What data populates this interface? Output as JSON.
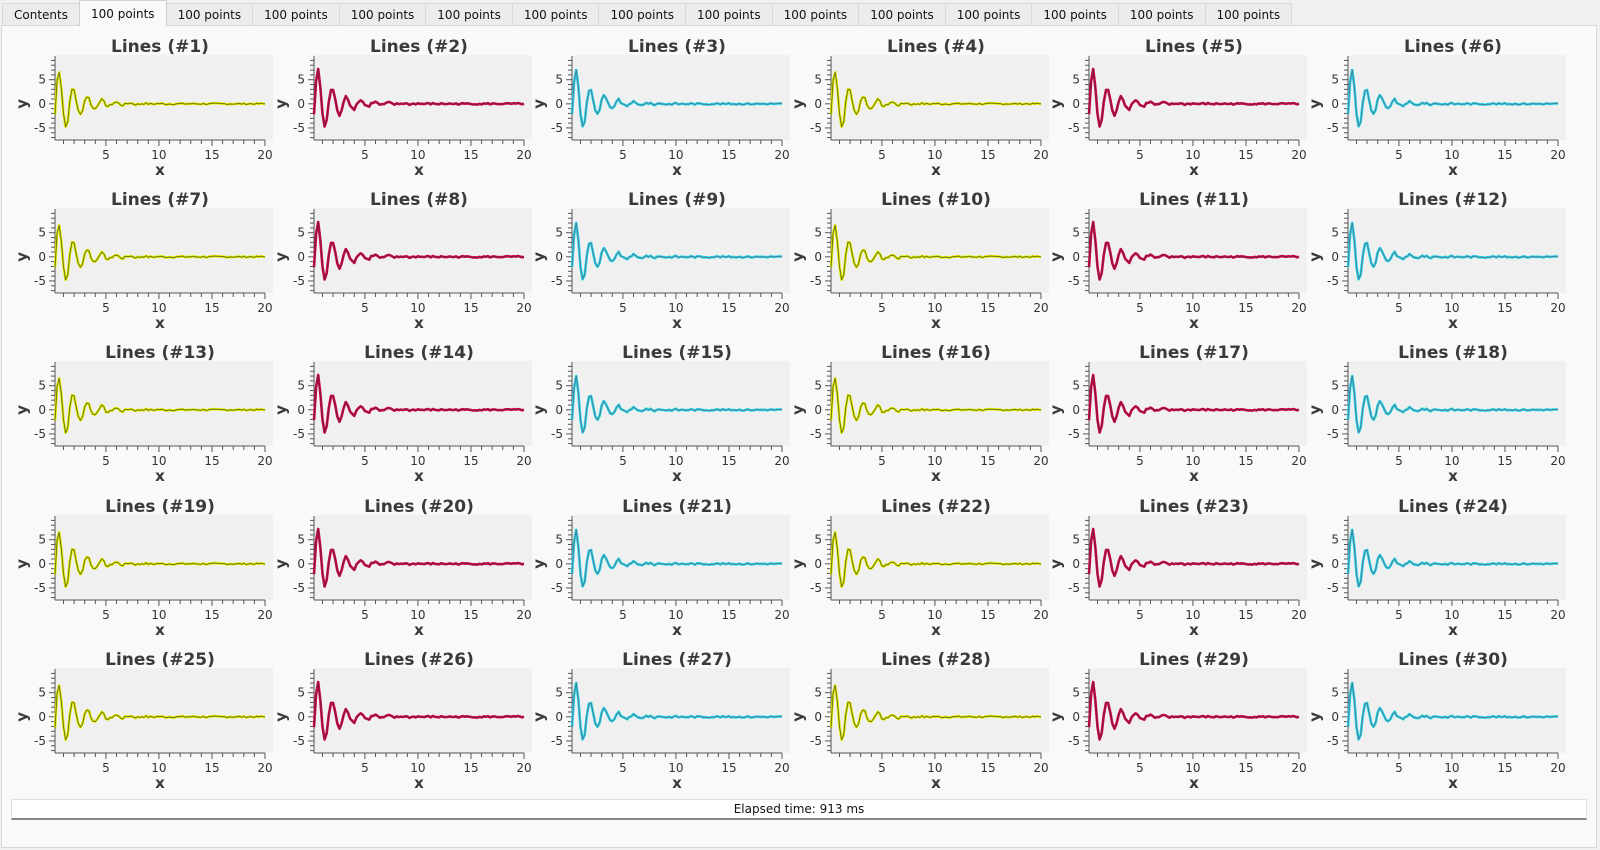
{
  "tabs": [
    {
      "label": "Contents",
      "active": false
    },
    {
      "label": "100 points",
      "active": true
    },
    {
      "label": "100 points",
      "active": false
    },
    {
      "label": "100 points",
      "active": false
    },
    {
      "label": "100 points",
      "active": false
    },
    {
      "label": "100 points",
      "active": false
    },
    {
      "label": "100 points",
      "active": false
    },
    {
      "label": "100 points",
      "active": false
    },
    {
      "label": "100 points",
      "active": false
    },
    {
      "label": "100 points",
      "active": false
    },
    {
      "label": "100 points",
      "active": false
    },
    {
      "label": "100 points",
      "active": false
    },
    {
      "label": "100 points",
      "active": false
    },
    {
      "label": "100 points",
      "active": false
    },
    {
      "label": "100 points",
      "active": false
    }
  ],
  "status": {
    "text": "Elapsed time: 913 ms"
  },
  "chart_style": {
    "palette": [
      {
        "name": "yellow",
        "main": "#e6f000",
        "shade": "#9aa800",
        "dark": "#5a5a20"
      },
      {
        "name": "crimson",
        "main": "#d4003a",
        "shade": "#a0144a",
        "dark": "#6a2050"
      },
      {
        "name": "cyan",
        "main": "#1ed8f0",
        "shade": "#48a8b8",
        "dark": "#4a6a80"
      }
    ],
    "plot_bg": "#f0f0f0"
  },
  "chart_data": {
    "type": "line",
    "description": "30 small multiples, each a damped oscillation sampled at 100 points; color cycles yellow, crimson, cyan",
    "points_per_chart": 100,
    "xlabel": "x",
    "ylabel": "y",
    "xlim": [
      0.2,
      20
    ],
    "ylim": [
      -7.5,
      9.5
    ],
    "xticks": [
      "5",
      "10",
      "15",
      "20"
    ],
    "yticks": [
      "5",
      "0",
      "-5"
    ],
    "grid": false,
    "model": {
      "formula": "y = A * exp(-k*x) * sin(w*x) + small residual ripple",
      "A": 9,
      "k": 0.55,
      "w": 11
    },
    "charts": [
      {
        "title": "Lines (#1)",
        "color": 0
      },
      {
        "title": "Lines (#2)",
        "color": 1
      },
      {
        "title": "Lines (#3)",
        "color": 2
      },
      {
        "title": "Lines (#4)",
        "color": 0
      },
      {
        "title": "Lines (#5)",
        "color": 1
      },
      {
        "title": "Lines (#6)",
        "color": 2
      },
      {
        "title": "Lines (#7)",
        "color": 0
      },
      {
        "title": "Lines (#8)",
        "color": 1
      },
      {
        "title": "Lines (#9)",
        "color": 2
      },
      {
        "title": "Lines (#10)",
        "color": 0
      },
      {
        "title": "Lines (#11)",
        "color": 1
      },
      {
        "title": "Lines (#12)",
        "color": 2
      },
      {
        "title": "Lines (#13)",
        "color": 0
      },
      {
        "title": "Lines (#14)",
        "color": 1
      },
      {
        "title": "Lines (#15)",
        "color": 2
      },
      {
        "title": "Lines (#16)",
        "color": 0
      },
      {
        "title": "Lines (#17)",
        "color": 1
      },
      {
        "title": "Lines (#18)",
        "color": 2
      },
      {
        "title": "Lines (#19)",
        "color": 0
      },
      {
        "title": "Lines (#20)",
        "color": 1
      },
      {
        "title": "Lines (#21)",
        "color": 2
      },
      {
        "title": "Lines (#22)",
        "color": 0
      },
      {
        "title": "Lines (#23)",
        "color": 1
      },
      {
        "title": "Lines (#24)",
        "color": 2
      },
      {
        "title": "Lines (#25)",
        "color": 0
      },
      {
        "title": "Lines (#26)",
        "color": 1
      },
      {
        "title": "Lines (#27)",
        "color": 2
      },
      {
        "title": "Lines (#28)",
        "color": 0
      },
      {
        "title": "Lines (#29)",
        "color": 1
      },
      {
        "title": "Lines (#30)",
        "color": 2
      }
    ]
  }
}
